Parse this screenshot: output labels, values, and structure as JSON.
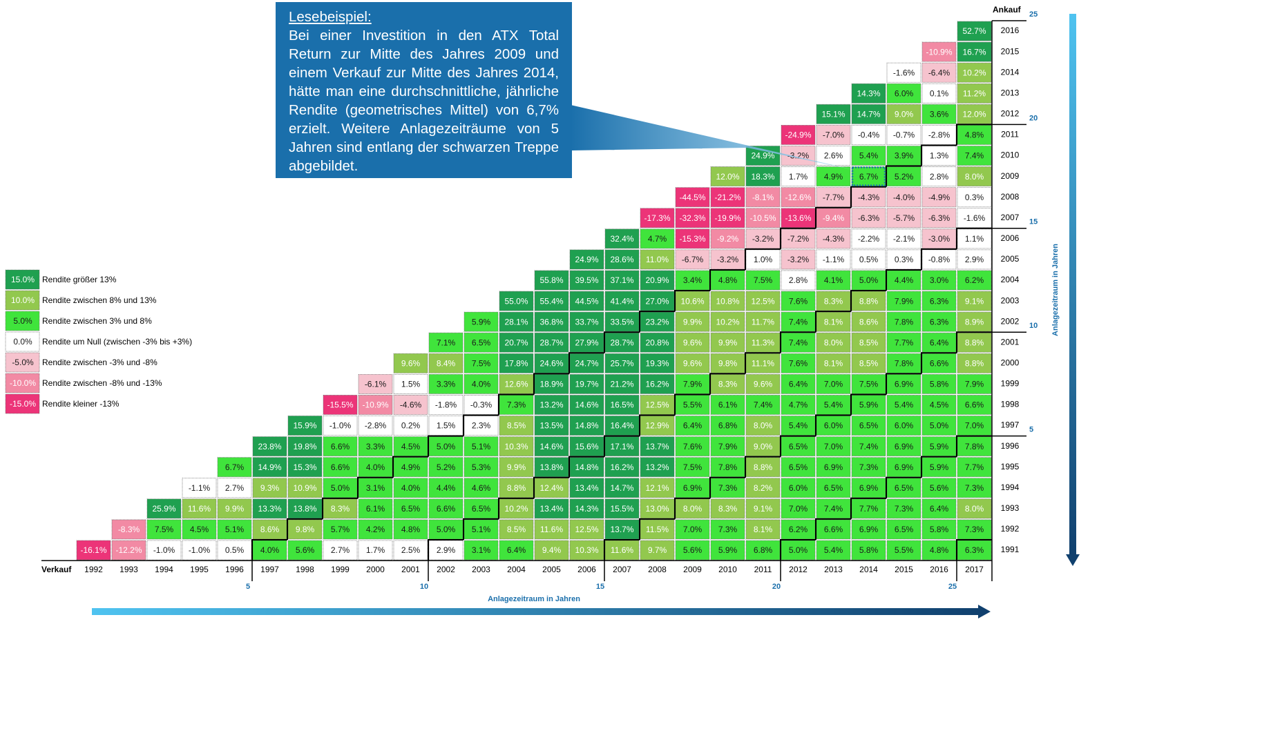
{
  "ankauf_label": "Ankauf",
  "verkauf_label": "Verkauf",
  "axis_label": "Anlagezeitraum in Jahren",
  "verkauf_years": [
    1992,
    1993,
    1994,
    1995,
    1996,
    1997,
    1998,
    1999,
    2000,
    2001,
    2002,
    2003,
    2004,
    2005,
    2006,
    2007,
    2008,
    2009,
    2010,
    2011,
    2012,
    2013,
    2014,
    2015,
    2016,
    2017
  ],
  "durations": [
    5,
    10,
    15,
    20,
    25
  ],
  "rows": [
    {
      "year": 2016,
      "cells": [
        "52.7%"
      ]
    },
    {
      "year": 2015,
      "cells": [
        "-10.9%",
        "16.7%"
      ]
    },
    {
      "year": 2014,
      "cells": [
        "-1.6%",
        "-6.4%",
        "10.2%"
      ]
    },
    {
      "year": 2013,
      "cells": [
        "14.3%",
        "6.0%",
        "0.1%",
        "11.2%"
      ]
    },
    {
      "year": 2012,
      "cells": [
        "15.1%",
        "14.7%",
        "9.0%",
        "3.6%",
        "12.0%"
      ]
    },
    {
      "year": 2011,
      "cells": [
        "-24.9%",
        "-7.0%",
        "-0.4%",
        "-0.7%",
        "-2.8%",
        "4.8%"
      ]
    },
    {
      "year": 2010,
      "cells": [
        "24.9%",
        "-3.2%",
        "2.6%",
        "5.4%",
        "3.9%",
        "1.3%",
        "7.4%"
      ]
    },
    {
      "year": 2009,
      "cells": [
        "12.0%",
        "18.3%",
        "1.7%",
        "4.9%",
        "6.7%",
        "5.2%",
        "2.8%",
        "8.0%"
      ]
    },
    {
      "year": 2008,
      "cells": [
        "-44.5%",
        "-21.2%",
        "-8.1%",
        "-12.6%",
        "-7.7%",
        "-4.3%",
        "-4.0%",
        "-4.9%",
        "0.3%"
      ]
    },
    {
      "year": 2007,
      "cells": [
        "-17.3%",
        "-32.3%",
        "-19.9%",
        "-10.5%",
        "-13.6%",
        "-9.4%",
        "-6.3%",
        "-5.7%",
        "-6.3%",
        "-1.6%"
      ]
    },
    {
      "year": 2006,
      "cells": [
        "32.4%",
        "4.7%",
        "-15.3%",
        "-9.2%",
        "-3.2%",
        "-7.2%",
        "-4.3%",
        "-2.2%",
        "-2.1%",
        "-3.0%",
        "1.1%"
      ]
    },
    {
      "year": 2005,
      "cells": [
        "24.9%",
        "28.6%",
        "11.0%",
        "-6.7%",
        "-3.2%",
        "1.0%",
        "-3.2%",
        "-1.1%",
        "0.5%",
        "0.3%",
        "-0.8%",
        "2.9%"
      ]
    },
    {
      "year": 2004,
      "cells": [
        "55.8%",
        "39.5%",
        "37.1%",
        "20.9%",
        "3.4%",
        "4.8%",
        "7.5%",
        "2.8%",
        "4.1%",
        "5.0%",
        "4.4%",
        "3.0%",
        "6.2%"
      ]
    },
    {
      "year": 2003,
      "cells": [
        "55.0%",
        "55.4%",
        "44.5%",
        "41.4%",
        "27.0%",
        "10.6%",
        "10.8%",
        "12.5%",
        "7.6%",
        "8.3%",
        "8.8%",
        "7.9%",
        "6.3%",
        "9.1%"
      ]
    },
    {
      "year": 2002,
      "cells": [
        "5.9%",
        "28.1%",
        "36.8%",
        "33.7%",
        "33.5%",
        "23.2%",
        "9.9%",
        "10.2%",
        "11.7%",
        "7.4%",
        "8.1%",
        "8.6%",
        "7.8%",
        "6.3%",
        "8.9%"
      ]
    },
    {
      "year": 2001,
      "cells": [
        "7.1%",
        "6.5%",
        "20.7%",
        "28.7%",
        "27.9%",
        "28.7%",
        "20.8%",
        "9.6%",
        "9.9%",
        "11.3%",
        "7.4%",
        "8.0%",
        "8.5%",
        "7.7%",
        "6.4%",
        "8.8%"
      ]
    },
    {
      "year": 2000,
      "cells": [
        "9.6%",
        "8.4%",
        "7.5%",
        "17.8%",
        "24.6%",
        "24.7%",
        "25.7%",
        "19.3%",
        "9.6%",
        "9.8%",
        "11.1%",
        "7.6%",
        "8.1%",
        "8.5%",
        "7.8%",
        "6.6%",
        "8.8%"
      ]
    },
    {
      "year": 1999,
      "cells": [
        "-6.1%",
        "1.5%",
        "3.3%",
        "4.0%",
        "12.6%",
        "18.9%",
        "19.7%",
        "21.2%",
        "16.2%",
        "7.9%",
        "8.3%",
        "9.6%",
        "6.4%",
        "7.0%",
        "7.5%",
        "6.9%",
        "5.8%",
        "7.9%"
      ]
    },
    {
      "year": 1998,
      "cells": [
        "-15.5%",
        "-10.9%",
        "-4.6%",
        "-1.8%",
        "-0.3%",
        "7.3%",
        "13.2%",
        "14.6%",
        "16.5%",
        "12.5%",
        "5.5%",
        "6.1%",
        "7.4%",
        "4.7%",
        "5.4%",
        "5.9%",
        "5.4%",
        "4.5%",
        "6.6%"
      ]
    },
    {
      "year": 1997,
      "cells": [
        "15.9%",
        "-1.0%",
        "-2.8%",
        "0.2%",
        "1.5%",
        "2.3%",
        "8.5%",
        "13.5%",
        "14.8%",
        "16.4%",
        "12.9%",
        "6.4%",
        "6.8%",
        "8.0%",
        "5.4%",
        "6.0%",
        "6.5%",
        "6.0%",
        "5.0%",
        "7.0%"
      ]
    },
    {
      "year": 1996,
      "cells": [
        "23.8%",
        "19.8%",
        "6.6%",
        "3.3%",
        "4.5%",
        "5.0%",
        "5.1%",
        "10.3%",
        "14.6%",
        "15.6%",
        "17.1%",
        "13.7%",
        "7.6%",
        "7.9%",
        "9.0%",
        "6.5%",
        "7.0%",
        "7.4%",
        "6.9%",
        "5.9%",
        "7.8%"
      ]
    },
    {
      "year": 1995,
      "cells": [
        "6.7%",
        "14.9%",
        "15.3%",
        "6.6%",
        "4.0%",
        "4.9%",
        "5.2%",
        "5.3%",
        "9.9%",
        "13.8%",
        "14.8%",
        "16.2%",
        "13.2%",
        "7.5%",
        "7.8%",
        "8.8%",
        "6.5%",
        "6.9%",
        "7.3%",
        "6.9%",
        "5.9%",
        "7.7%"
      ]
    },
    {
      "year": 1994,
      "cells": [
        "-1.1%",
        "2.7%",
        "9.3%",
        "10.9%",
        "5.0%",
        "3.1%",
        "4.0%",
        "4.4%",
        "4.6%",
        "8.8%",
        "12.4%",
        "13.4%",
        "14.7%",
        "12.1%",
        "6.9%",
        "7.3%",
        "8.2%",
        "6.0%",
        "6.5%",
        "6.9%",
        "6.5%",
        "5.6%",
        "7.3%"
      ]
    },
    {
      "year": 1993,
      "cells": [
        "25.9%",
        "11.6%",
        "9.9%",
        "13.3%",
        "13.8%",
        "8.3%",
        "6.1%",
        "6.5%",
        "6.6%",
        "6.5%",
        "10.2%",
        "13.4%",
        "14.3%",
        "15.5%",
        "13.0%",
        "8.0%",
        "8.3%",
        "9.1%",
        "7.0%",
        "7.4%",
        "7.7%",
        "7.3%",
        "6.4%",
        "8.0%"
      ]
    },
    {
      "year": 1992,
      "cells": [
        "-8.3%",
        "7.5%",
        "4.5%",
        "5.1%",
        "8.6%",
        "9.8%",
        "5.7%",
        "4.2%",
        "4.8%",
        "5.0%",
        "5.1%",
        "8.5%",
        "11.6%",
        "12.5%",
        "13.7%",
        "11.5%",
        "7.0%",
        "7.3%",
        "8.1%",
        "6.2%",
        "6.6%",
        "6.9%",
        "6.5%",
        "5.8%",
        "7.3%"
      ]
    },
    {
      "year": 1991,
      "cells": [
        "-16.1%",
        "-12.2%",
        "-1.0%",
        "-1.0%",
        "0.5%",
        "4.0%",
        "5.6%",
        "2.7%",
        "1.7%",
        "2.5%",
        "2.9%",
        "3.1%",
        "6.4%",
        "9.4%",
        "10.3%",
        "11.6%",
        "9.7%",
        "5.6%",
        "5.9%",
        "6.8%",
        "5.0%",
        "5.4%",
        "5.8%",
        "5.5%",
        "4.8%",
        "6.3%"
      ]
    }
  ],
  "legend": {
    "thresholds": [
      13,
      8,
      3,
      -3,
      -8,
      -13
    ],
    "items": [
      {
        "swatch": "15.0%",
        "label": "Rendite größer 13%",
        "color": "#1fa050",
        "text_color": "#ffffff"
      },
      {
        "swatch": "10.0%",
        "label": "Rendite zwischen 8% und 13%",
        "color": "#92c84e",
        "text_color": "#ffffff"
      },
      {
        "swatch": "5.0%",
        "label": "Rendite zwischen 3% und 8%",
        "color": "#40e43c",
        "text_color": "#1a1a1a"
      },
      {
        "swatch": "0.0%",
        "label": "Rendite um Null (zwischen -3% bis +3%)",
        "color": "#ffffff",
        "text_color": "#1a1a1a"
      },
      {
        "swatch": "-5.0%",
        "label": "Rendite zwischen -3% und -8%",
        "color": "#f6c3ce",
        "text_color": "#1a1a1a"
      },
      {
        "swatch": "-10.0%",
        "label": "Rendite zwischen -8% und -13%",
        "color": "#f28aa4",
        "text_color": "#ffffff"
      },
      {
        "swatch": "-15.0%",
        "label": "Rendite kleiner -13%",
        "color": "#ec3478",
        "text_color": "#ffffff"
      }
    ]
  },
  "callout": {
    "title": "Lesebeispiel:",
    "text": "Bei einer Investition in den ATX Total Return zur Mitte des Jahres 2009 und einem Verkauf zur Mitte des Jahres 2014, hätte man eine durchschnittliche, jährliche Rendite (geometrisches Mittel) von 6,7% erzielt. Weitere Anlagezeiträume von 5 Jahren sind entlang der schwarzen Treppe abgebildet."
  }
}
